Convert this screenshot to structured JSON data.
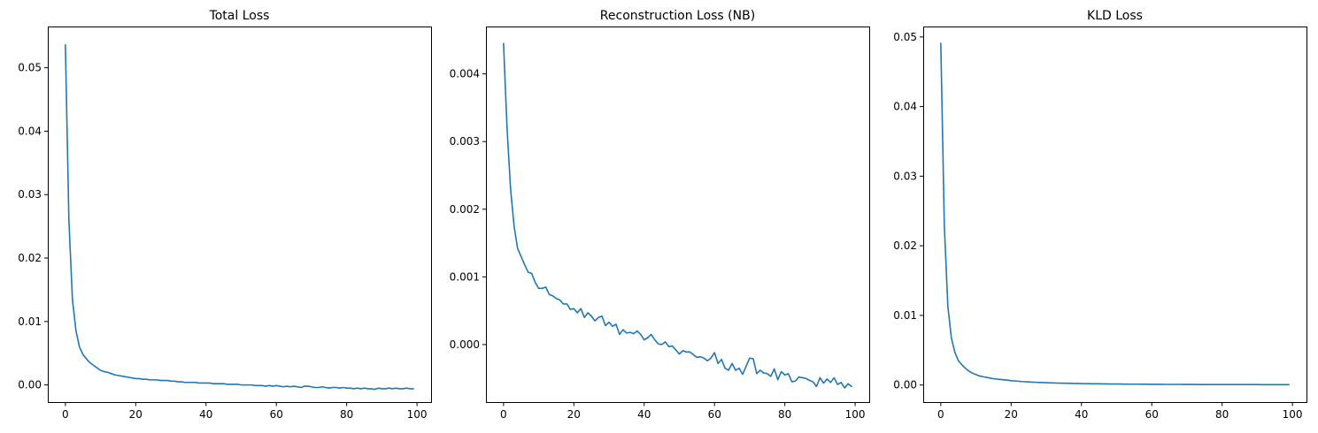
{
  "chart_data": [
    {
      "type": "line",
      "title": "Total Loss",
      "xlabel": "",
      "ylabel": "",
      "xlim": [
        -5,
        104
      ],
      "ylim": [
        -0.0027,
        0.0565
      ],
      "xticks": [
        0,
        20,
        40,
        60,
        80,
        100
      ],
      "xtick_labels": [
        "0",
        "20",
        "40",
        "60",
        "80",
        "100"
      ],
      "yticks": [
        0.0,
        0.01,
        0.02,
        0.03,
        0.04,
        0.05
      ],
      "ytick_labels": [
        "0.00",
        "0.01",
        "0.02",
        "0.03",
        "0.04",
        "0.05"
      ],
      "grid": false,
      "color": "#1f77b4",
      "series": [
        {
          "x": [
            0,
            1,
            2,
            3,
            4,
            5,
            6,
            7,
            8,
            9,
            10,
            11,
            12,
            13,
            14,
            15,
            16,
            17,
            18,
            19,
            20,
            21,
            22,
            23,
            24,
            25,
            26,
            27,
            28,
            29,
            30,
            31,
            32,
            33,
            34,
            35,
            36,
            37,
            38,
            39,
            40,
            41,
            42,
            43,
            44,
            45,
            46,
            47,
            48,
            49,
            50,
            51,
            52,
            53,
            54,
            55,
            56,
            57,
            58,
            59,
            60,
            61,
            62,
            63,
            64,
            65,
            66,
            67,
            68,
            69,
            70,
            71,
            72,
            73,
            74,
            75,
            76,
            77,
            78,
            79,
            80,
            81,
            82,
            83,
            84,
            85,
            86,
            87,
            88,
            89,
            90,
            91,
            92,
            93,
            94,
            95,
            96,
            97,
            98,
            99
          ],
          "values": [
            0.0536,
            0.026,
            0.0135,
            0.0086,
            0.006,
            0.0048,
            0.0041,
            0.0035,
            0.0031,
            0.0027,
            0.0023,
            0.0021,
            0.002,
            0.0018,
            0.0016,
            0.0015,
            0.0014,
            0.0013,
            0.0012,
            0.0011,
            0.001,
            0.001,
            0.0009,
            0.0009,
            0.0008,
            0.0008,
            0.0008,
            0.0007,
            0.0007,
            0.0007,
            0.0006,
            0.0006,
            0.0005,
            0.0005,
            0.0004,
            0.0004,
            0.0004,
            0.0004,
            0.0003,
            0.0003,
            0.0003,
            0.0003,
            0.0002,
            0.0002,
            0.0002,
            0.0002,
            0.0001,
            0.0001,
            0.0001,
            0.0001,
            0.0,
            0.0,
            0.0,
            0.0,
            -0.0001,
            -0.0001,
            -0.0001,
            -0.0002,
            -0.0001,
            -0.0002,
            -0.0001,
            -0.0002,
            -0.0003,
            -0.0002,
            -0.0003,
            -0.0002,
            -0.0003,
            -0.0004,
            -0.0002,
            -0.0002,
            -0.0003,
            -0.0004,
            -0.0004,
            -0.0003,
            -0.0004,
            -0.0005,
            -0.0004,
            -0.0004,
            -0.0005,
            -0.0004,
            -0.0005,
            -0.0005,
            -0.0006,
            -0.0005,
            -0.0006,
            -0.0005,
            -0.0006,
            -0.0006,
            -0.0007,
            -0.0005,
            -0.0006,
            -0.0006,
            -0.0005,
            -0.0006,
            -0.0005,
            -0.0006,
            -0.0006,
            -0.0005,
            -0.0006,
            -0.0006
          ]
        }
      ]
    },
    {
      "type": "line",
      "title": "Reconstruction Loss (NB)",
      "xlabel": "",
      "ylabel": "",
      "xlim": [
        -5,
        104
      ],
      "ylim": [
        -0.00085,
        0.0047
      ],
      "xticks": [
        0,
        20,
        40,
        60,
        80,
        100
      ],
      "xtick_labels": [
        "0",
        "20",
        "40",
        "60",
        "80",
        "100"
      ],
      "yticks": [
        0.0,
        0.001,
        0.002,
        0.003,
        0.004
      ],
      "ytick_labels": [
        "0.000",
        "0.001",
        "0.002",
        "0.003",
        "0.004"
      ],
      "grid": false,
      "color": "#1f77b4",
      "series": [
        {
          "x": [
            0,
            1,
            2,
            3,
            4,
            5,
            6,
            7,
            8,
            9,
            10,
            11,
            12,
            13,
            14,
            15,
            16,
            17,
            18,
            19,
            20,
            21,
            22,
            23,
            24,
            25,
            26,
            27,
            28,
            29,
            30,
            31,
            32,
            33,
            34,
            35,
            36,
            37,
            38,
            39,
            40,
            41,
            42,
            43,
            44,
            45,
            46,
            47,
            48,
            49,
            50,
            51,
            52,
            53,
            54,
            55,
            56,
            57,
            58,
            59,
            60,
            61,
            62,
            63,
            64,
            65,
            66,
            67,
            68,
            69,
            70,
            71,
            72,
            73,
            74,
            75,
            76,
            77,
            78,
            79,
            80,
            81,
            82,
            83,
            84,
            85,
            86,
            87,
            88,
            89,
            90,
            91,
            92,
            93,
            94,
            95,
            96,
            97,
            98,
            99
          ],
          "values": [
            0.00445,
            0.0032,
            0.0023,
            0.00175,
            0.00142,
            0.0013,
            0.00118,
            0.00107,
            0.00105,
            0.00092,
            0.00083,
            0.00083,
            0.00085,
            0.00074,
            0.00072,
            0.00068,
            0.00066,
            0.0006,
            0.0006,
            0.00052,
            0.00053,
            0.00047,
            0.00053,
            0.0004,
            0.00047,
            0.00042,
            0.00035,
            0.0004,
            0.00042,
            0.00028,
            0.00033,
            0.00027,
            0.0003,
            0.00015,
            0.00022,
            0.00017,
            0.00018,
            0.00016,
            0.0002,
            0.00015,
            7e-05,
            0.0001,
            0.00015,
            7e-05,
            1e-05,
            0.0,
            4e-05,
            -3e-05,
            -2e-05,
            -8e-05,
            -0.00014,
            -9e-05,
            -0.00011,
            -0.00011,
            -0.00015,
            -0.00019,
            -0.00018,
            -0.0002,
            -0.00024,
            -0.0002,
            -0.00012,
            -0.00028,
            -0.00022,
            -0.00035,
            -0.00038,
            -0.00028,
            -0.00038,
            -0.00035,
            -0.00044,
            -0.00032,
            -0.0002,
            -0.00021,
            -0.00043,
            -0.00038,
            -0.00042,
            -0.00043,
            -0.00047,
            -0.00036,
            -0.00052,
            -0.0004,
            -0.00045,
            -0.00043,
            -0.00055,
            -0.00054,
            -0.00048,
            -0.00049,
            -0.0005,
            -0.00053,
            -0.00055,
            -0.00062,
            -0.00049,
            -0.00057,
            -0.00051,
            -0.00056,
            -0.00049,
            -0.00059,
            -0.00056,
            -0.00064,
            -0.00058,
            -0.00062
          ]
        }
      ]
    },
    {
      "type": "line",
      "title": "KLD Loss",
      "xlabel": "",
      "ylabel": "",
      "xlim": [
        -5,
        104
      ],
      "ylim": [
        -0.00245,
        0.0515
      ],
      "xticks": [
        0,
        20,
        40,
        60,
        80,
        100
      ],
      "xtick_labels": [
        "0",
        "20",
        "40",
        "60",
        "80",
        "100"
      ],
      "yticks": [
        0.0,
        0.01,
        0.02,
        0.03,
        0.04,
        0.05
      ],
      "ytick_labels": [
        "0.00",
        "0.01",
        "0.02",
        "0.03",
        "0.04",
        "0.05"
      ],
      "grid": false,
      "color": "#1f77b4",
      "series": [
        {
          "x": [
            0,
            1,
            2,
            3,
            4,
            5,
            6,
            7,
            8,
            9,
            10,
            11,
            12,
            13,
            14,
            15,
            16,
            17,
            18,
            19,
            20,
            21,
            22,
            23,
            24,
            25,
            26,
            27,
            28,
            29,
            30,
            31,
            32,
            33,
            34,
            35,
            36,
            37,
            38,
            39,
            40,
            41,
            42,
            43,
            44,
            45,
            46,
            47,
            48,
            49,
            50,
            51,
            52,
            53,
            54,
            55,
            56,
            57,
            58,
            59,
            60,
            61,
            62,
            63,
            64,
            65,
            66,
            67,
            68,
            69,
            70,
            71,
            72,
            73,
            74,
            75,
            76,
            77,
            78,
            79,
            80,
            81,
            82,
            83,
            84,
            85,
            86,
            87,
            88,
            89,
            90,
            91,
            92,
            93,
            94,
            95,
            96,
            97,
            98,
            99
          ],
          "values": [
            0.0491,
            0.023,
            0.0113,
            0.0068,
            0.0047,
            0.0035,
            0.0029,
            0.0024,
            0.002,
            0.0017,
            0.0015,
            0.0013,
            0.0012,
            0.0011,
            0.001,
            0.0009,
            0.00085,
            0.0008,
            0.00075,
            0.0007,
            0.00062,
            0.00058,
            0.00055,
            0.0005,
            0.00047,
            0.00044,
            0.00041,
            0.00039,
            0.00037,
            0.00035,
            0.00033,
            0.00031,
            0.0003,
            0.00028,
            0.00027,
            0.00026,
            0.00025,
            0.00024,
            0.00023,
            0.00022,
            0.00021,
            0.0002,
            0.00019,
            0.00018,
            0.00018,
            0.00017,
            0.00016,
            0.00016,
            0.00015,
            0.00015,
            0.00014,
            0.00014,
            0.00013,
            0.00013,
            0.00012,
            0.00012,
            0.00012,
            0.00011,
            0.00011,
            0.00011,
            0.0001,
            0.0001,
            0.0001,
            0.0001,
            9e-05,
            9e-05,
            9e-05,
            9e-05,
            9e-05,
            8e-05,
            8e-05,
            8e-05,
            8e-05,
            8e-05,
            7e-05,
            7e-05,
            7e-05,
            7e-05,
            7e-05,
            7e-05,
            7e-05,
            6e-05,
            6e-05,
            6e-05,
            6e-05,
            6e-05,
            6e-05,
            6e-05,
            6e-05,
            6e-05,
            6e-05,
            5e-05,
            5e-05,
            5e-05,
            5e-05,
            5e-05,
            5e-05,
            5e-05,
            5e-05,
            5e-05
          ]
        }
      ]
    }
  ]
}
